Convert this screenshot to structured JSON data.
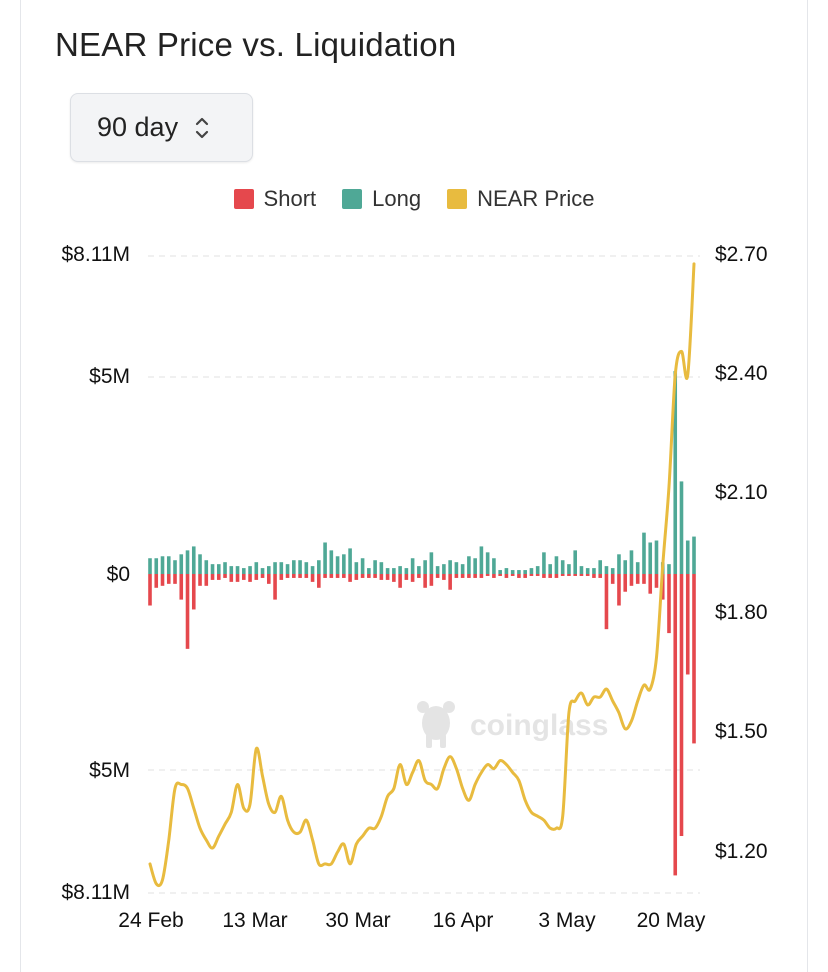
{
  "title": "NEAR Price vs. Liquidation",
  "range_select": {
    "value": "90 day",
    "icon": "updown-chevron-icon"
  },
  "legend": [
    {
      "label": "Short",
      "color": "#e5484d"
    },
    {
      "label": "Long",
      "color": "#4fa896"
    },
    {
      "label": "NEAR Price",
      "color": "#e8bb3f"
    }
  ],
  "watermark": "coinglass",
  "axes": {
    "left_ticks": [
      "$8.11M",
      "$5M",
      "$0",
      "$5M",
      "$8.11M"
    ],
    "right_ticks": [
      "$2.70",
      "$2.40",
      "$2.10",
      "$1.80",
      "$1.50",
      "$1.20"
    ],
    "x_ticks": [
      "24 Feb",
      "13 Mar",
      "30 Mar",
      "16 Apr",
      "3 May",
      "20 May"
    ]
  },
  "chart_data": {
    "type": "bar+line",
    "title": "NEAR Price vs. Liquidation",
    "liquidation_range_musd": [
      -8.11,
      8.11
    ],
    "price_range_usd": [
      1.1,
      2.7
    ],
    "grid": "dashed horizontal",
    "legend_position": "top",
    "x_ticks": [
      "24 Feb",
      "13 Mar",
      "30 Mar",
      "16 Apr",
      "3 May",
      "20 May"
    ],
    "long_musd": [
      0.4,
      0.4,
      0.45,
      0.45,
      0.35,
      0.5,
      0.6,
      0.7,
      0.5,
      0.35,
      0.25,
      0.25,
      0.3,
      0.2,
      0.2,
      0.15,
      0.2,
      0.3,
      0.15,
      0.2,
      0.3,
      0.3,
      0.25,
      0.35,
      0.35,
      0.3,
      0.2,
      0.35,
      0.8,
      0.6,
      0.45,
      0.5,
      0.65,
      0.3,
      0.4,
      0.15,
      0.35,
      0.3,
      0.15,
      0.15,
      0.2,
      0.15,
      0.4,
      0.2,
      0.35,
      0.55,
      0.2,
      0.25,
      0.35,
      0.3,
      0.25,
      0.45,
      0.4,
      0.7,
      0.55,
      0.4,
      0.1,
      0.15,
      0.1,
      0.1,
      0.1,
      0.15,
      0.2,
      0.55,
      0.25,
      0.45,
      0.35,
      0.25,
      0.6,
      0.2,
      0.15,
      0.15,
      0.35,
      0.2,
      0.15,
      0.5,
      0.35,
      0.6,
      0.3,
      1.05,
      0.8,
      0.85,
      0.3,
      0.25,
      5.15,
      2.35,
      0.85,
      0.95
    ],
    "short_musd": [
      0.8,
      0.35,
      0.3,
      0.25,
      0.25,
      0.65,
      1.9,
      0.9,
      0.3,
      0.3,
      0.15,
      0.15,
      0.1,
      0.2,
      0.2,
      0.15,
      0.2,
      0.15,
      0.1,
      0.25,
      0.65,
      0.15,
      0.1,
      0.1,
      0.1,
      0.1,
      0.2,
      0.35,
      0.1,
      0.1,
      0.1,
      0.1,
      0.2,
      0.15,
      0.1,
      0.1,
      0.1,
      0.15,
      0.15,
      0.2,
      0.35,
      0.15,
      0.2,
      0.1,
      0.35,
      0.3,
      0.1,
      0.15,
      0.4,
      0.1,
      0.1,
      0.1,
      0.1,
      0.1,
      0.05,
      0.1,
      0.05,
      0.1,
      0.05,
      0.1,
      0.1,
      0.05,
      0.05,
      0.1,
      0.1,
      0.1,
      0.05,
      0.05,
      0.05,
      0.05,
      0.05,
      0.1,
      0.1,
      1.4,
      0.25,
      0.8,
      0.45,
      0.3,
      0.25,
      0.25,
      0.5,
      0.35,
      0.65,
      1.5,
      7.65,
      6.65,
      2.55,
      4.3
    ],
    "price_usd": [
      1.17,
      1.12,
      1.13,
      1.23,
      1.36,
      1.37,
      1.36,
      1.31,
      1.26,
      1.23,
      1.21,
      1.24,
      1.27,
      1.3,
      1.37,
      1.31,
      1.32,
      1.46,
      1.39,
      1.32,
      1.3,
      1.34,
      1.28,
      1.25,
      1.25,
      1.28,
      1.23,
      1.17,
      1.17,
      1.17,
      1.2,
      1.22,
      1.17,
      1.22,
      1.24,
      1.26,
      1.26,
      1.29,
      1.34,
      1.36,
      1.42,
      1.37,
      1.4,
      1.43,
      1.38,
      1.37,
      1.36,
      1.41,
      1.44,
      1.41,
      1.36,
      1.33,
      1.37,
      1.4,
      1.42,
      1.41,
      1.43,
      1.42,
      1.4,
      1.38,
      1.33,
      1.3,
      1.29,
      1.28,
      1.26,
      1.26,
      1.29,
      1.55,
      1.58,
      1.6,
      1.57,
      1.59,
      1.59,
      1.61,
      1.58,
      1.55,
      1.51,
      1.53,
      1.58,
      1.62,
      1.61,
      1.69,
      1.92,
      2.12,
      2.4,
      2.46,
      2.4,
      2.68
    ]
  }
}
